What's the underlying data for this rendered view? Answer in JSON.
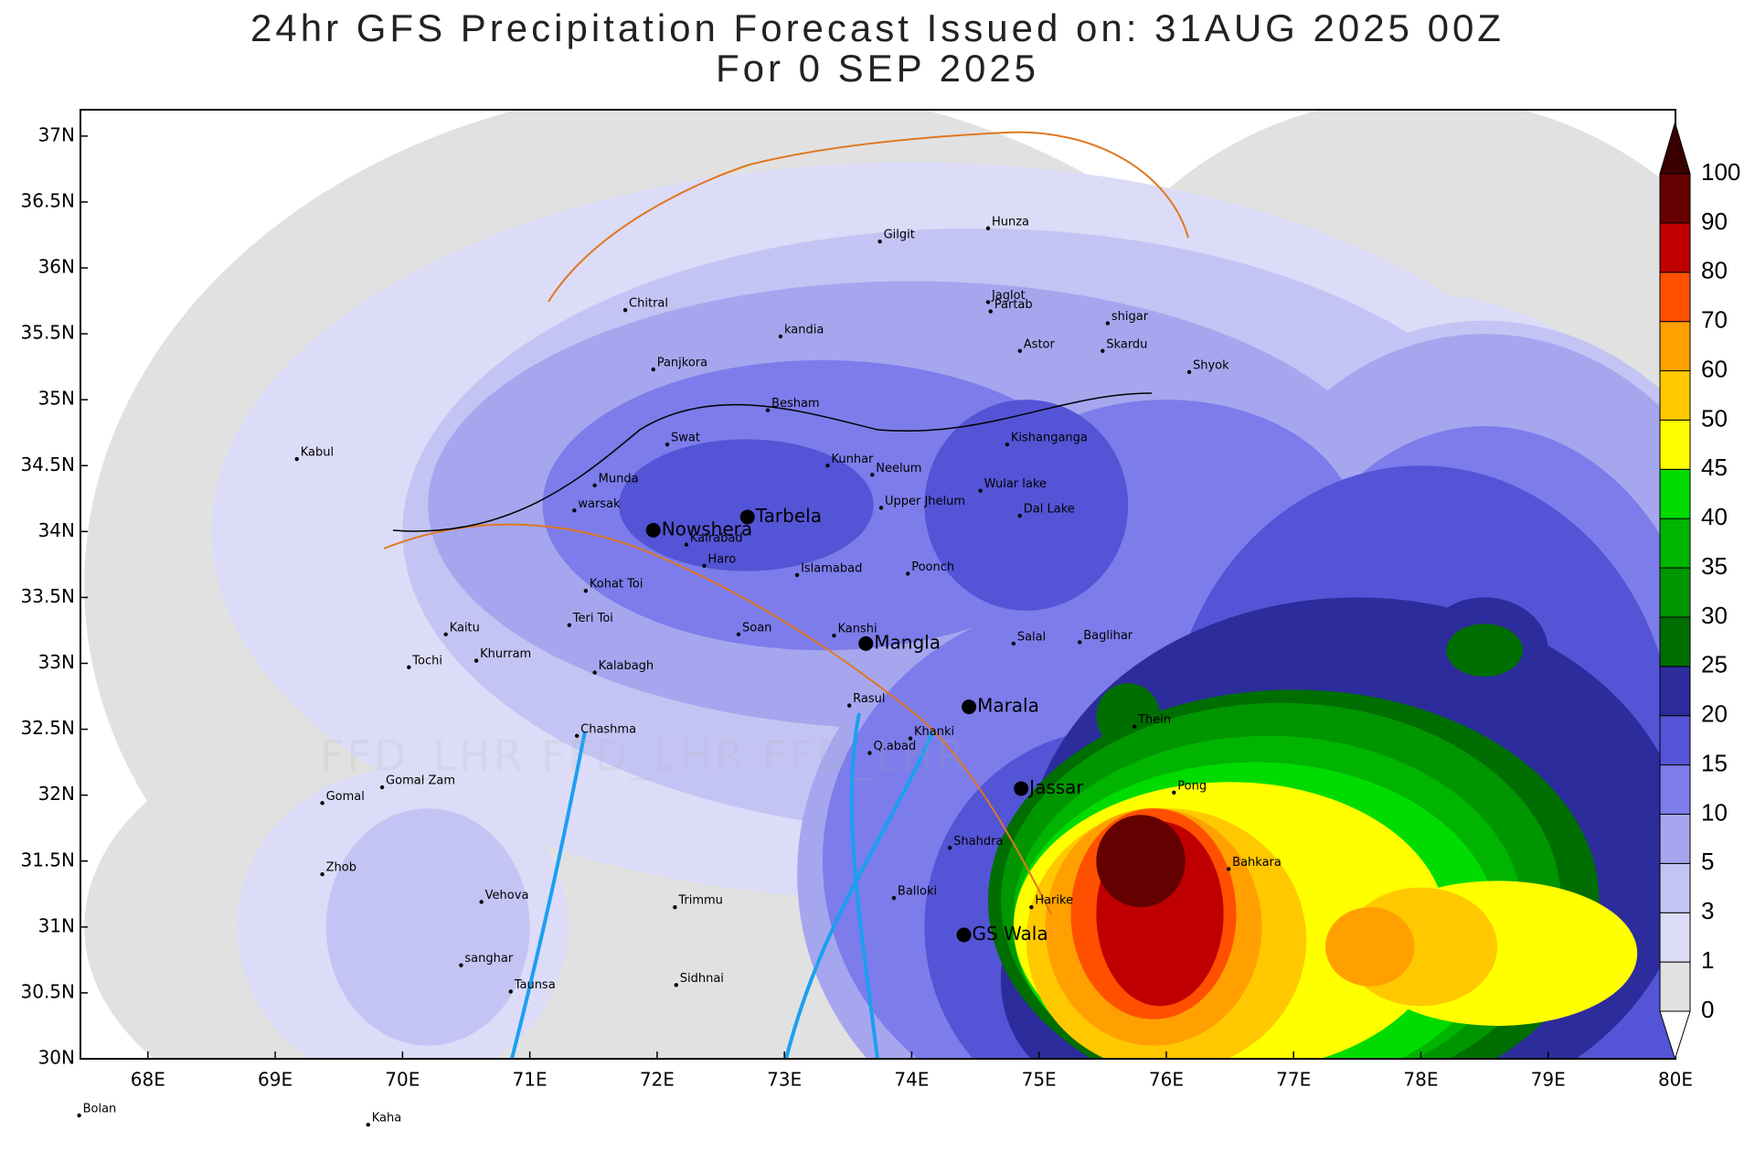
{
  "title": "24hr GFS Precipitation Forecast Issued on:  31AUG 2025 00Z",
  "subtitle": "For 0 SEP 2025",
  "watermark": "FFD_LHR FFD_LHR FFD_LHR",
  "map": {
    "xlim": [
      67.47,
      80
    ],
    "ylim": [
      30,
      37.2
    ],
    "xticks": [
      {
        "value": 68,
        "label": "68E"
      },
      {
        "value": 69,
        "label": "69E"
      },
      {
        "value": 70,
        "label": "70E"
      },
      {
        "value": 71,
        "label": "71E"
      },
      {
        "value": 72,
        "label": "72E"
      },
      {
        "value": 73,
        "label": "73E"
      },
      {
        "value": 74,
        "label": "74E"
      },
      {
        "value": 75,
        "label": "75E"
      },
      {
        "value": 76,
        "label": "76E"
      },
      {
        "value": 77,
        "label": "77E"
      },
      {
        "value": 78,
        "label": "78E"
      },
      {
        "value": 79,
        "label": "79E"
      },
      {
        "value": 80,
        "label": "80E"
      }
    ],
    "yticks": [
      {
        "value": 30,
        "label": "30N"
      },
      {
        "value": 30.5,
        "label": "30.5N"
      },
      {
        "value": 31,
        "label": "31N"
      },
      {
        "value": 31.5,
        "label": "31.5N"
      },
      {
        "value": 32,
        "label": "32N"
      },
      {
        "value": 32.5,
        "label": "32.5N"
      },
      {
        "value": 33,
        "label": "33N"
      },
      {
        "value": 33.5,
        "label": "33.5N"
      },
      {
        "value": 34,
        "label": "34N"
      },
      {
        "value": 34.5,
        "label": "34.5N"
      },
      {
        "value": 35,
        "label": "35N"
      },
      {
        "value": 35.5,
        "label": "35.5N"
      },
      {
        "value": 36,
        "label": "36N"
      },
      {
        "value": 36.5,
        "label": "36.5N"
      },
      {
        "value": 37,
        "label": "37N"
      }
    ]
  },
  "colorbar": {
    "levels": [
      0,
      1,
      3,
      5,
      10,
      15,
      20,
      25,
      30,
      35,
      40,
      45,
      50,
      60,
      70,
      80,
      90,
      100
    ],
    "colors": [
      "#e1e1e1",
      "#dcdcf8",
      "#c4c4f4",
      "#a6a6ef",
      "#7c7ceb",
      "#5454d6",
      "#2c2c9c",
      "#006e00",
      "#009600",
      "#00b400",
      "#00dc00",
      "#ffff00",
      "#ffc800",
      "#ffa000",
      "#ff5000",
      "#c00000",
      "#640000"
    ],
    "under_color": "#ffffff",
    "over_color": "#3a0000"
  },
  "places": [
    {
      "name": "Gilgit",
      "lon": 73.75,
      "lat": 36.2,
      "major": false
    },
    {
      "name": "Hunza",
      "lon": 74.6,
      "lat": 36.3,
      "major": false
    },
    {
      "name": "Chitral",
      "lon": 71.75,
      "lat": 35.68,
      "major": false
    },
    {
      "name": "Jaglot",
      "lon": 74.6,
      "lat": 35.74,
      "major": false
    },
    {
      "name": "Partab",
      "lon": 74.62,
      "lat": 35.67,
      "major": false
    },
    {
      "name": "shigar",
      "lon": 75.54,
      "lat": 35.58,
      "major": false
    },
    {
      "name": "kandia",
      "lon": 72.97,
      "lat": 35.48,
      "major": false
    },
    {
      "name": "Skardu",
      "lon": 75.5,
      "lat": 35.37,
      "major": false
    },
    {
      "name": "Astor",
      "lon": 74.85,
      "lat": 35.37,
      "major": false
    },
    {
      "name": "Panjkora",
      "lon": 71.97,
      "lat": 35.23,
      "major": false
    },
    {
      "name": "Shyok",
      "lon": 76.18,
      "lat": 35.21,
      "major": false
    },
    {
      "name": "Besham",
      "lon": 72.87,
      "lat": 34.92,
      "major": false
    },
    {
      "name": "Kabul",
      "lon": 69.17,
      "lat": 34.55,
      "major": false
    },
    {
      "name": "Swat",
      "lon": 72.08,
      "lat": 34.66,
      "major": false
    },
    {
      "name": "Kishanganga",
      "lon": 74.75,
      "lat": 34.66,
      "major": false
    },
    {
      "name": "Kunhar",
      "lon": 73.34,
      "lat": 34.5,
      "major": false
    },
    {
      "name": "Neelum",
      "lon": 73.69,
      "lat": 34.43,
      "major": false
    },
    {
      "name": "Munda",
      "lon": 71.51,
      "lat": 34.35,
      "major": false
    },
    {
      "name": "Wular lake",
      "lon": 74.54,
      "lat": 34.31,
      "major": false
    },
    {
      "name": "Tarbela",
      "lon": 72.71,
      "lat": 34.11,
      "major": true
    },
    {
      "name": "Upper Jhelum",
      "lon": 73.76,
      "lat": 34.18,
      "major": false
    },
    {
      "name": "warsak",
      "lon": 71.35,
      "lat": 34.16,
      "major": false
    },
    {
      "name": "Dal Lake",
      "lon": 74.85,
      "lat": 34.12,
      "major": false
    },
    {
      "name": "Nowshera",
      "lon": 71.97,
      "lat": 34.01,
      "major": true
    },
    {
      "name": "Kalrabad",
      "lon": 72.23,
      "lat": 33.9,
      "major": false
    },
    {
      "name": "Haro",
      "lon": 72.37,
      "lat": 33.74,
      "major": false
    },
    {
      "name": "Poonch",
      "lon": 73.97,
      "lat": 33.68,
      "major": false
    },
    {
      "name": "Islamabad",
      "lon": 73.1,
      "lat": 33.67,
      "major": false
    },
    {
      "name": "Kohat Toi",
      "lon": 71.44,
      "lat": 33.55,
      "major": false
    },
    {
      "name": "Teri Toi",
      "lon": 71.31,
      "lat": 33.29,
      "major": false
    },
    {
      "name": "Soan",
      "lon": 72.64,
      "lat": 33.22,
      "major": false
    },
    {
      "name": "Kaitu",
      "lon": 70.34,
      "lat": 33.22,
      "major": false
    },
    {
      "name": "Kanshi",
      "lon": 73.39,
      "lat": 33.21,
      "major": false
    },
    {
      "name": "Mangla",
      "lon": 73.64,
      "lat": 33.15,
      "major": true
    },
    {
      "name": "Salal",
      "lon": 74.8,
      "lat": 33.15,
      "major": false
    },
    {
      "name": "Baglihar",
      "lon": 75.32,
      "lat": 33.16,
      "major": false
    },
    {
      "name": "Khurram",
      "lon": 70.58,
      "lat": 33.02,
      "major": false
    },
    {
      "name": "Tochi",
      "lon": 70.05,
      "lat": 32.97,
      "major": false
    },
    {
      "name": "Kalabagh",
      "lon": 71.51,
      "lat": 32.93,
      "major": false
    },
    {
      "name": "Rasul",
      "lon": 73.51,
      "lat": 32.68,
      "major": false
    },
    {
      "name": "Marala",
      "lon": 74.45,
      "lat": 32.67,
      "major": true
    },
    {
      "name": "Thein",
      "lon": 75.75,
      "lat": 32.52,
      "major": false
    },
    {
      "name": "Chashma",
      "lon": 71.37,
      "lat": 32.45,
      "major": false
    },
    {
      "name": "Khanki",
      "lon": 73.99,
      "lat": 32.43,
      "major": false
    },
    {
      "name": "Q.abad",
      "lon": 73.67,
      "lat": 32.32,
      "major": false
    },
    {
      "name": "Gomal Zam",
      "lon": 69.84,
      "lat": 32.06,
      "major": false
    },
    {
      "name": "Jassar",
      "lon": 74.86,
      "lat": 32.05,
      "major": true
    },
    {
      "name": "Gomal",
      "lon": 69.37,
      "lat": 31.94,
      "major": false
    },
    {
      "name": "Pong",
      "lon": 76.06,
      "lat": 32.02,
      "major": false
    },
    {
      "name": "Shahdra",
      "lon": 74.3,
      "lat": 31.6,
      "major": false
    },
    {
      "name": "Bahkara",
      "lon": 76.49,
      "lat": 31.44,
      "major": false
    },
    {
      "name": "Zhob",
      "lon": 69.37,
      "lat": 31.4,
      "major": false
    },
    {
      "name": "Balloki",
      "lon": 73.86,
      "lat": 31.22,
      "major": false
    },
    {
      "name": "Trimmu",
      "lon": 72.14,
      "lat": 31.15,
      "major": false
    },
    {
      "name": "Vehova",
      "lon": 70.62,
      "lat": 31.19,
      "major": false
    },
    {
      "name": "Harike",
      "lon": 74.94,
      "lat": 31.15,
      "major": false
    },
    {
      "name": "GS Wala",
      "lon": 74.41,
      "lat": 30.94,
      "major": true
    },
    {
      "name": "sanghar",
      "lon": 70.46,
      "lat": 30.71,
      "major": false
    },
    {
      "name": "Taunsa",
      "lon": 70.85,
      "lat": 30.51,
      "major": false
    },
    {
      "name": "Sidhnai",
      "lon": 72.15,
      "lat": 30.56,
      "major": false
    },
    {
      "name": "Bolan",
      "lon": 67.46,
      "lat": 29.57,
      "major": false
    },
    {
      "name": "Kaha",
      "lon": 69.73,
      "lat": 29.5,
      "major": false
    }
  ]
}
